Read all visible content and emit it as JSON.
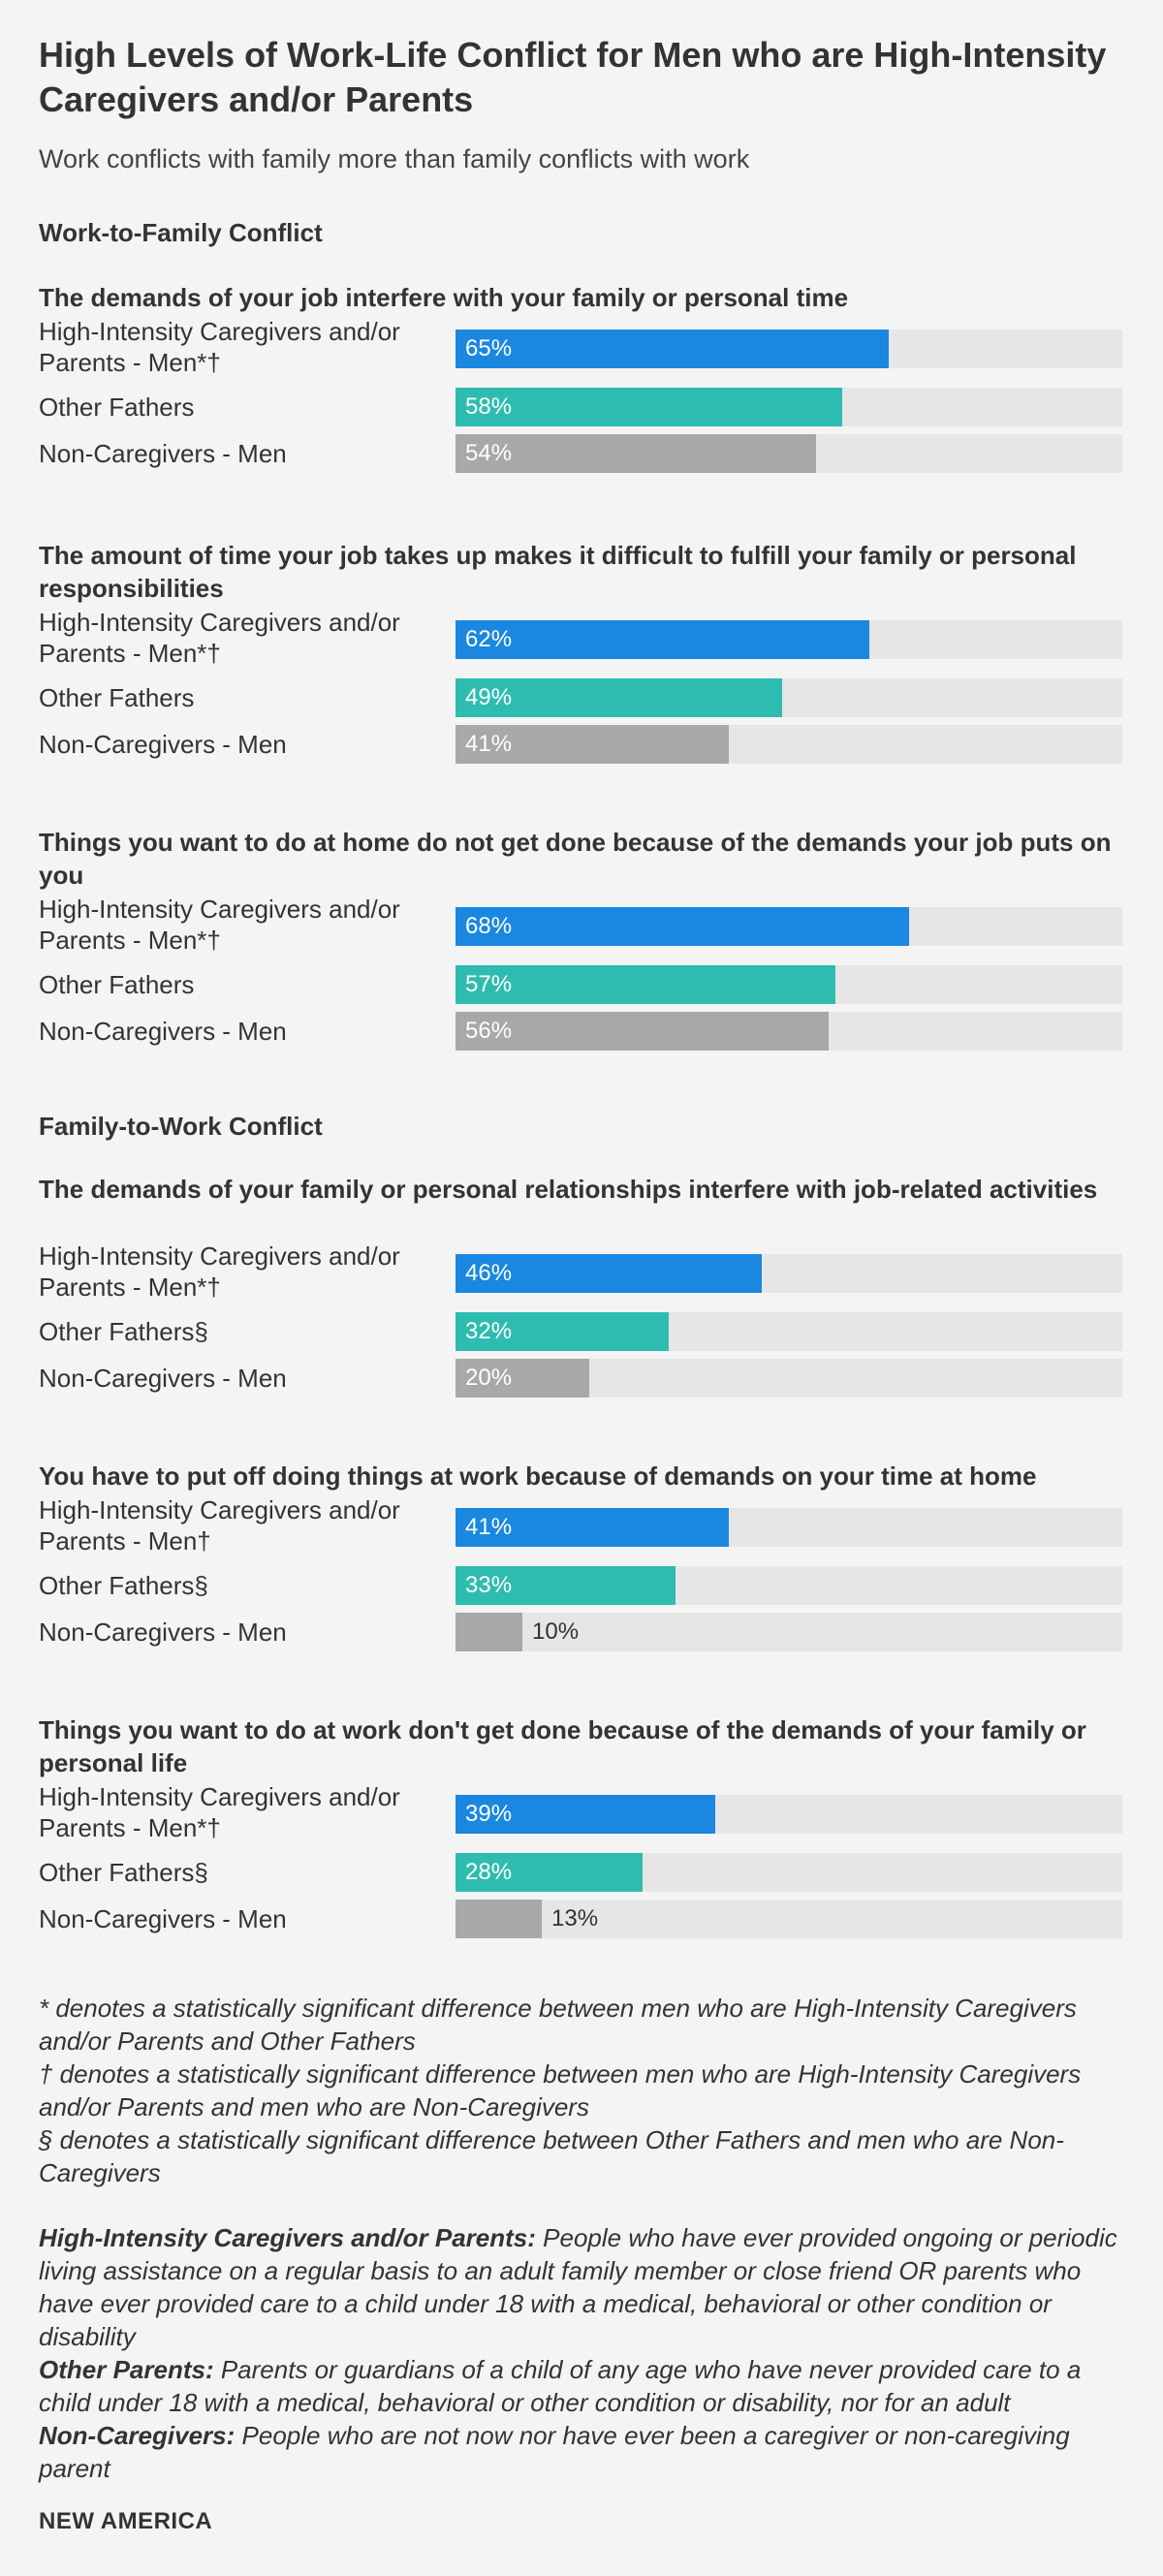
{
  "colors": {
    "high_intensity": "#1a87e0",
    "other_fathers": "#2fbcb0",
    "non_caregivers": "#a8a8a8",
    "track": "#e6e6e6"
  },
  "chart_data": {
    "type": "bar",
    "orientation": "horizontal",
    "title": "High Levels of Work-Life Conflict for Men who are High-Intensity Caregivers and/or Parents",
    "subtitle": "Work conflicts with family more than family conflicts with work",
    "xlim": [
      0,
      100
    ],
    "value_suffix": "%",
    "sections": [
      {
        "heading": "Work-to-Family Conflict",
        "questions": [
          {
            "question": "The demands of your job interfere with your family or personal time",
            "rows": [
              {
                "label": "High-Intensity Caregivers and/or Parents - Men*†",
                "value": 65,
                "group": "high_intensity"
              },
              {
                "label": "Other Fathers",
                "value": 58,
                "group": "other_fathers"
              },
              {
                "label": "Non-Caregivers - Men",
                "value": 54,
                "group": "non_caregivers"
              }
            ]
          },
          {
            "question": "The amount of time your job takes up makes it difficult to fulfill your family or personal responsibilities",
            "rows": [
              {
                "label": "High-Intensity Caregivers and/or Parents - Men*†",
                "value": 62,
                "group": "high_intensity"
              },
              {
                "label": "Other Fathers",
                "value": 49,
                "group": "other_fathers"
              },
              {
                "label": "Non-Caregivers - Men",
                "value": 41,
                "group": "non_caregivers"
              }
            ]
          },
          {
            "question": "Things you want to do at home do not get done because of the demands your job puts on you",
            "rows": [
              {
                "label": "High-Intensity Caregivers and/or Parents - Men*†",
                "value": 68,
                "group": "high_intensity"
              },
              {
                "label": "Other Fathers",
                "value": 57,
                "group": "other_fathers"
              },
              {
                "label": "Non-Caregivers - Men",
                "value": 56,
                "group": "non_caregivers"
              }
            ]
          }
        ]
      },
      {
        "heading": "Family-to-Work Conflict",
        "questions": [
          {
            "question": "The demands of your family or personal relationships interfere with job-related activities",
            "rows": [
              {
                "label": "High-Intensity Caregivers and/or Parents - Men*†",
                "value": 46,
                "group": "high_intensity"
              },
              {
                "label": "Other Fathers§",
                "value": 32,
                "group": "other_fathers"
              },
              {
                "label": "Non-Caregivers - Men",
                "value": 20,
                "group": "non_caregivers"
              }
            ]
          },
          {
            "question": "You have to put off doing things at work because of demands on your time at home",
            "rows": [
              {
                "label": "High-Intensity Caregivers and/or Parents - Men†",
                "value": 41,
                "group": "high_intensity"
              },
              {
                "label": "Other Fathers§",
                "value": 33,
                "group": "other_fathers"
              },
              {
                "label": "Non-Caregivers - Men",
                "value": 10,
                "group": "non_caregivers"
              }
            ]
          },
          {
            "question": "Things you want to do at work don't get done because of the demands of your family or personal life",
            "rows": [
              {
                "label": "High-Intensity Caregivers and/or Parents - Men*†",
                "value": 39,
                "group": "high_intensity"
              },
              {
                "label": "Other Fathers§",
                "value": 28,
                "group": "other_fathers"
              },
              {
                "label": "Non-Caregivers - Men",
                "value": 13,
                "group": "non_caregivers"
              }
            ]
          }
        ]
      }
    ]
  },
  "notes": [
    "* denotes a statistically significant difference between men who are High-Intensity Caregivers and/or Parents and Other Fathers",
    "† denotes a statistically significant difference between men who are High-Intensity Caregivers and/or Parents and men who are Non-Caregivers",
    "§ denotes a statistically significant difference between Other Fathers and men who are Non-Caregivers"
  ],
  "definitions": [
    {
      "term": "High-Intensity Caregivers and/or Parents:",
      "text": "People who have ever provided ongoing or periodic living assistance on a regular basis to an adult family member or close friend OR parents who have ever provided care to a child under 18 with a medical, behavioral or other condition or disability"
    },
    {
      "term": "Other Parents:",
      "text": "Parents or guardians of a child of any age who have never provided care to a child under 18 with a medical, behavioral or other condition or disability, nor for an adult"
    },
    {
      "term": "Non-Caregivers:",
      "text": "People who are not now nor have ever been a caregiver or non-caregiving parent"
    }
  ],
  "footer": "NEW AMERICA"
}
